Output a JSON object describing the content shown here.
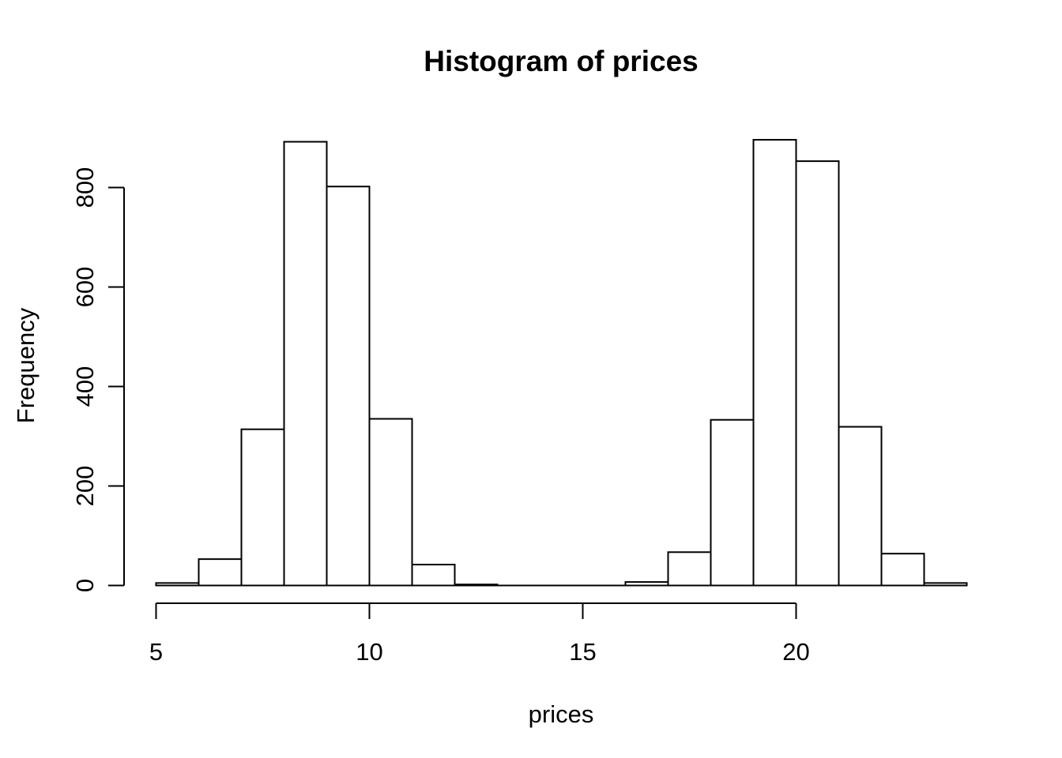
{
  "chart_data": {
    "type": "bar",
    "subtype": "histogram",
    "title": "Histogram of prices",
    "xlabel": "prices",
    "ylabel": "Frequency",
    "bin_edges": [
      5,
      6,
      7,
      8,
      9,
      10,
      11,
      12,
      13,
      14,
      15,
      16,
      17,
      18,
      19,
      20,
      21,
      22,
      23,
      24
    ],
    "counts": [
      5,
      53,
      314,
      892,
      802,
      335,
      42,
      2,
      0,
      0,
      0,
      7,
      67,
      333,
      896,
      853,
      319,
      64,
      5
    ],
    "x_ticks": [
      5,
      10,
      15,
      20
    ],
    "y_ticks": [
      0,
      200,
      400,
      600,
      800
    ],
    "xlim": [
      5,
      24
    ],
    "ylim": [
      0,
      900
    ],
    "grid": false,
    "legend_position": "none",
    "bar_fill": "#ffffff",
    "bar_stroke": "#000000",
    "axis_color": "#000000",
    "text_color": "#000000",
    "background": "#ffffff"
  }
}
